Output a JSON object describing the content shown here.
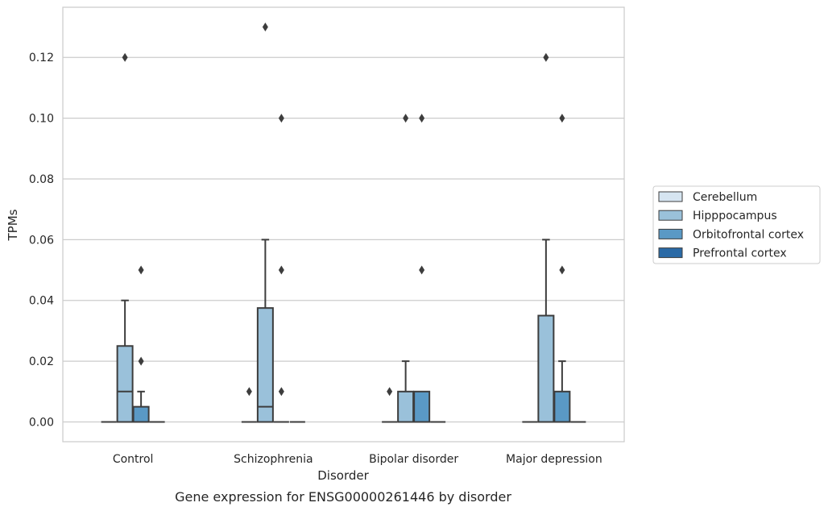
{
  "chart_data": {
    "type": "box",
    "title": "",
    "caption": "Gene expression for ENSG00000261446 by disorder",
    "xlabel": "Disorder",
    "ylabel": "TPMs",
    "ylim": [
      -0.0065,
      0.1365
    ],
    "yticks": [
      "0.00",
      "0.02",
      "0.04",
      "0.06",
      "0.08",
      "0.10",
      "0.12"
    ],
    "grid": true,
    "legend_position": "right",
    "categories": [
      "Control",
      "Schizophrenia",
      "Bipolar disorder",
      "Major depression"
    ],
    "series": [
      {
        "name": "Cerebellum",
        "color": "#d6e5f1",
        "boxes": [
          {
            "q1": 0,
            "median": 0,
            "q3": 0,
            "whislo": 0,
            "whishi": 0,
            "fliers": []
          },
          {
            "q1": 0,
            "median": 0,
            "q3": 0,
            "whislo": 0,
            "whishi": 0,
            "fliers": [
              0.01
            ]
          },
          {
            "q1": 0,
            "median": 0,
            "q3": 0,
            "whislo": 0,
            "whishi": 0,
            "fliers": [
              0.01
            ]
          },
          {
            "q1": 0,
            "median": 0,
            "q3": 0,
            "whislo": 0,
            "whishi": 0,
            "fliers": []
          }
        ]
      },
      {
        "name": "Hipppocampus",
        "color": "#9ac1da",
        "boxes": [
          {
            "q1": 0,
            "median": 0.01,
            "q3": 0.025,
            "whislo": 0,
            "whishi": 0.04,
            "fliers": [
              0.12
            ]
          },
          {
            "q1": 0,
            "median": 0.005,
            "q3": 0.0375,
            "whislo": 0,
            "whishi": 0.06,
            "fliers": [
              0.13
            ]
          },
          {
            "q1": 0,
            "median": 0,
            "q3": 0.01,
            "whislo": 0,
            "whishi": 0.02,
            "fliers": [
              0.1
            ]
          },
          {
            "q1": 0,
            "median": 0,
            "q3": 0.035,
            "whislo": 0,
            "whishi": 0.06,
            "fliers": [
              0.12
            ]
          }
        ]
      },
      {
        "name": "Orbitofrontal cortex",
        "color": "#5a99c5",
        "boxes": [
          {
            "q1": 0,
            "median": 0,
            "q3": 0.005,
            "whislo": 0,
            "whishi": 0.01,
            "fliers": [
              0.02,
              0.05
            ]
          },
          {
            "q1": 0,
            "median": 0,
            "q3": 0,
            "whislo": 0,
            "whishi": 0,
            "fliers": [
              0.01,
              0.05,
              0.1
            ]
          },
          {
            "q1": 0,
            "median": 0,
            "q3": 0.01,
            "whislo": 0,
            "whishi": 0.01,
            "fliers": [
              0.05,
              0.1
            ]
          },
          {
            "q1": 0,
            "median": 0,
            "q3": 0.01,
            "whislo": 0,
            "whishi": 0.02,
            "fliers": [
              0.05,
              0.1
            ]
          }
        ]
      },
      {
        "name": "Prefrontal cortex",
        "color": "#2a6aa6",
        "boxes": [
          {
            "q1": 0,
            "median": 0,
            "q3": 0,
            "whislo": 0,
            "whishi": 0,
            "fliers": []
          },
          {
            "q1": 0,
            "median": 0,
            "q3": 0,
            "whislo": 0,
            "whishi": 0,
            "fliers": []
          },
          {
            "q1": 0,
            "median": 0,
            "q3": 0,
            "whislo": 0,
            "whishi": 0,
            "fliers": []
          },
          {
            "q1": 0,
            "median": 0,
            "q3": 0,
            "whislo": 0,
            "whishi": 0,
            "fliers": []
          }
        ]
      }
    ]
  }
}
